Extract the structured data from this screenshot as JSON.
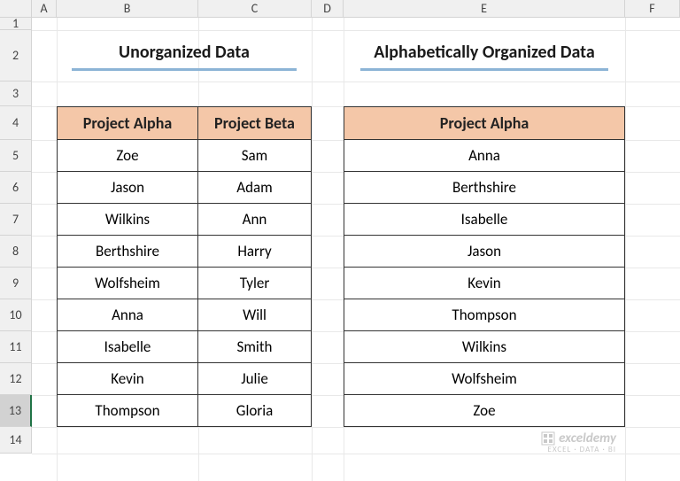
{
  "columns": [
    "A",
    "B",
    "C",
    "D",
    "E",
    "F"
  ],
  "rows": [
    "1",
    "2",
    "3",
    "4",
    "5",
    "6",
    "7",
    "8",
    "9",
    "10",
    "11",
    "12",
    "13",
    "14"
  ],
  "selected_row": 13,
  "titles": {
    "left": "Unorganized Data",
    "right": "Alphabetically Organized Data"
  },
  "headers": {
    "alpha": "Project Alpha",
    "beta": "Project Beta",
    "alpha2": "Project Alpha"
  },
  "left_table": {
    "colB": [
      "Zoe",
      "Jason",
      "Wilkins",
      "Berthshire",
      "Wolfsheim",
      "Anna",
      "Isabelle",
      "Kevin",
      "Thompson"
    ],
    "colC": [
      "Sam",
      "Adam",
      "Ann",
      "Harry",
      "Tyler",
      "Will",
      "Smith",
      "Julie",
      "Gloria"
    ]
  },
  "right_table": {
    "colE": [
      "Anna",
      "Berthshire",
      "Isabelle",
      "Jason",
      "Kevin",
      "Thompson",
      "Wilkins",
      "Wolfsheim",
      "Zoe"
    ]
  },
  "colors": {
    "header_bg": "#f4c7a8",
    "underline": "#8cb4d6",
    "grid_line": "#e8e8e8",
    "table_border": "#333333",
    "row_header_bg": "#f0f0f0",
    "selected_header_bg": "#d2d2d2"
  },
  "watermark": {
    "line1": "exceldemy",
    "line2": "EXCEL · DATA · BI"
  }
}
